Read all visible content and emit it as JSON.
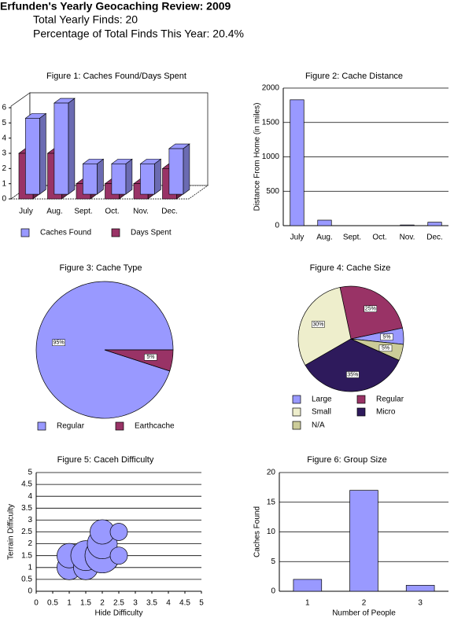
{
  "header": {
    "title": "Erfunden's Yearly Geocaching Review: 2009",
    "lines": [
      "Total Yearly Finds: 20",
      "Percentage of Total Finds This Year: 20.4%"
    ]
  },
  "chart_data": [
    {
      "type": "bar3d",
      "title": "Figure 1: Caches Found/Days Spent",
      "categories": [
        "July",
        "Aug.",
        "Sept.",
        "Oct.",
        "Nov.",
        "Dec."
      ],
      "series": [
        {
          "name": "Caches Found",
          "color": "#9999ff",
          "values": [
            5,
            6,
            2,
            2,
            2,
            3
          ]
        },
        {
          "name": "Days Spent",
          "color": "#993366",
          "values": [
            3,
            3,
            1,
            1,
            1,
            2
          ]
        }
      ],
      "ylim": [
        0,
        6
      ],
      "yticks": [
        0,
        1,
        2,
        3,
        4,
        5,
        6
      ],
      "legend": "bottom"
    },
    {
      "type": "bar",
      "title": "Figure 2: Cache Distance",
      "y_label": "Distance From Home (in miles)",
      "categories": [
        "July",
        "Aug.",
        "Sept.",
        "Oct.",
        "Nov.",
        "Dec."
      ],
      "values": [
        1830,
        80,
        0,
        0,
        10,
        50
      ],
      "color": "#9999ff",
      "ylim": [
        0,
        2000
      ],
      "yticks": [
        0,
        500,
        1000,
        1500,
        2000
      ],
      "grid": true
    },
    {
      "type": "pie",
      "title": "Figure 3: Cache Type",
      "categories": [
        "Regular",
        "Earthcache"
      ],
      "values": [
        95,
        5
      ],
      "value_labels": [
        "95%",
        "5%"
      ],
      "colors": [
        "#9999ff",
        "#993366"
      ],
      "legend": "bottom"
    },
    {
      "type": "pie",
      "title": "Figure 4: Cache Size",
      "categories": [
        "Large",
        "Regular",
        "Small",
        "Micro",
        "N/A"
      ],
      "values": [
        5,
        25,
        30,
        35,
        5
      ],
      "value_labels": [
        "5%",
        "25%",
        "30%",
        "35%",
        "5%"
      ],
      "colors": [
        "#9999ff",
        "#993366",
        "#eeeecc",
        "#2e1a5c",
        "#cccc99"
      ],
      "legend": "bottom"
    },
    {
      "type": "bubble",
      "title": "Figure 5: Caceh Difficulty",
      "x_label": "Hide Difficulty",
      "y_label": "Terrain Difficulty",
      "x": [
        1,
        1,
        1.5,
        1.5,
        2,
        2,
        2,
        2.5,
        2.5
      ],
      "values": [
        1,
        1.5,
        1,
        1.5,
        1.5,
        2,
        2.5,
        1.5,
        2.5
      ],
      "sizes": [
        2,
        2,
        2,
        3,
        4,
        3,
        2,
        1,
        1
      ],
      "color": "#9999ff",
      "xlim": [
        0,
        5
      ],
      "xticks": [
        0,
        0.5,
        1,
        1.5,
        2,
        2.5,
        3,
        3.5,
        4,
        4.5,
        5
      ],
      "ylim": [
        0,
        5
      ],
      "yticks": [
        0,
        0.5,
        1,
        1.5,
        2,
        2.5,
        3,
        3.5,
        4,
        4.5,
        5
      ],
      "grid": true
    },
    {
      "type": "bar",
      "title": "Figure 6: Group Size",
      "x_label": "Number of People",
      "y_label": "Caches Found",
      "categories": [
        "1",
        "2",
        "3"
      ],
      "values": [
        2,
        17,
        1
      ],
      "color": "#9999ff",
      "ylim": [
        0,
        20
      ],
      "yticks": [
        0,
        5,
        10,
        15,
        20
      ],
      "grid": true
    }
  ]
}
